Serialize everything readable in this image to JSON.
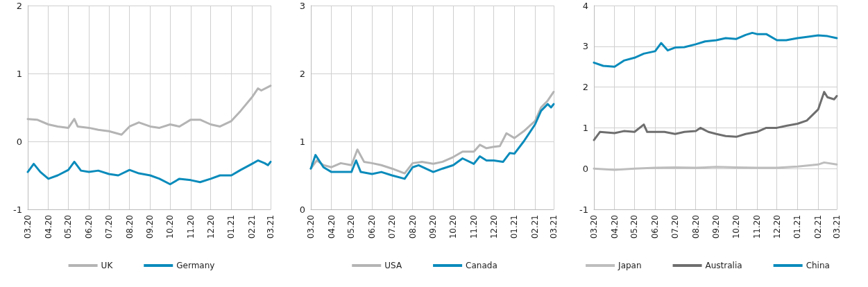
{
  "chart_data": [
    {
      "type": "line",
      "xlim": [
        "2020-03-01",
        "2021-03-01"
      ],
      "ylim": [
        -1,
        2
      ],
      "yticks": [
        -1,
        0,
        1,
        2
      ],
      "grid": true,
      "legend": "bottom",
      "marker": "none",
      "line_style": "solid",
      "xticks": [
        {
          "value": "2020-03-01",
          "label": "03.20"
        },
        {
          "value": "2020-04-01",
          "label": "04.20"
        },
        {
          "value": "2020-05-01",
          "label": "05.20"
        },
        {
          "value": "2020-06-01",
          "label": "06.20"
        },
        {
          "value": "2020-07-01",
          "label": "07.20"
        },
        {
          "value": "2020-08-01",
          "label": "08.20"
        },
        {
          "value": "2020-09-01",
          "label": "09.20"
        },
        {
          "value": "2020-10-01",
          "label": "10.20"
        },
        {
          "value": "2020-11-01",
          "label": "11.20"
        },
        {
          "value": "2020-12-01",
          "label": "12.20"
        },
        {
          "value": "2021-01-01",
          "label": "01.21"
        },
        {
          "value": "2021-02-01",
          "label": "02.21"
        },
        {
          "value": "2021-03-01",
          "label": "03.21"
        }
      ],
      "series": [
        {
          "name": "UK",
          "color": "#b4b4b4",
          "x": [
            "2020-03-01",
            "2020-03-15",
            "2020-04-01",
            "2020-04-15",
            "2020-05-01",
            "2020-05-10",
            "2020-05-15",
            "2020-06-01",
            "2020-06-15",
            "2020-07-01",
            "2020-07-20",
            "2020-08-01",
            "2020-08-15",
            "2020-09-01",
            "2020-09-15",
            "2020-10-01",
            "2020-10-15",
            "2020-11-01",
            "2020-11-15",
            "2020-12-01",
            "2020-12-15",
            "2021-01-01",
            "2021-01-15",
            "2021-02-01",
            "2021-02-10",
            "2021-02-15",
            "2021-02-25",
            "2021-03-01"
          ],
          "values": [
            0.33,
            0.32,
            0.25,
            0.22,
            0.2,
            0.33,
            0.22,
            0.2,
            0.17,
            0.15,
            0.1,
            0.22,
            0.28,
            0.22,
            0.2,
            0.25,
            0.22,
            0.32,
            0.32,
            0.25,
            0.22,
            0.3,
            0.45,
            0.65,
            0.78,
            0.75,
            0.8,
            0.82
          ]
        },
        {
          "name": "Germany",
          "color": "#0a8bbb",
          "x": [
            "2020-03-01",
            "2020-03-10",
            "2020-03-20",
            "2020-04-01",
            "2020-04-15",
            "2020-05-01",
            "2020-05-10",
            "2020-05-20",
            "2020-06-01",
            "2020-06-15",
            "2020-07-01",
            "2020-07-15",
            "2020-08-01",
            "2020-08-15",
            "2020-09-01",
            "2020-09-15",
            "2020-10-01",
            "2020-10-15",
            "2020-11-01",
            "2020-11-15",
            "2020-12-01",
            "2020-12-15",
            "2021-01-01",
            "2021-01-15",
            "2021-02-01",
            "2021-02-10",
            "2021-02-20",
            "2021-02-25",
            "2021-03-01"
          ],
          "values": [
            -0.45,
            -0.33,
            -0.45,
            -0.55,
            -0.5,
            -0.42,
            -0.3,
            -0.43,
            -0.45,
            -0.43,
            -0.48,
            -0.5,
            -0.42,
            -0.47,
            -0.5,
            -0.55,
            -0.63,
            -0.55,
            -0.57,
            -0.6,
            -0.55,
            -0.5,
            -0.5,
            -0.42,
            -0.33,
            -0.28,
            -0.32,
            -0.35,
            -0.3
          ]
        }
      ]
    },
    {
      "type": "line",
      "xlim": [
        "2020-03-01",
        "2021-03-01"
      ],
      "ylim": [
        0,
        3
      ],
      "yticks": [
        0,
        1,
        2,
        3
      ],
      "grid": true,
      "legend": "bottom",
      "marker": "none",
      "line_style": "solid",
      "xticks": [
        {
          "value": "2020-03-01",
          "label": "03.20"
        },
        {
          "value": "2020-04-01",
          "label": "04.20"
        },
        {
          "value": "2020-05-01",
          "label": "05.20"
        },
        {
          "value": "2020-06-01",
          "label": "06.20"
        },
        {
          "value": "2020-07-01",
          "label": "07.20"
        },
        {
          "value": "2020-08-01",
          "label": "08.20"
        },
        {
          "value": "2020-09-01",
          "label": "09.20"
        },
        {
          "value": "2020-10-01",
          "label": "10.20"
        },
        {
          "value": "2020-11-01",
          "label": "11.20"
        },
        {
          "value": "2020-12-01",
          "label": "12.20"
        },
        {
          "value": "2021-01-01",
          "label": "01.21"
        },
        {
          "value": "2021-02-01",
          "label": "02.21"
        },
        {
          "value": "2021-03-01",
          "label": "03.21"
        }
      ],
      "series": [
        {
          "name": "USA",
          "color": "#b4b4b4",
          "x": [
            "2020-03-01",
            "2020-03-10",
            "2020-03-20",
            "2020-04-01",
            "2020-04-15",
            "2020-05-01",
            "2020-05-10",
            "2020-05-20",
            "2020-06-01",
            "2020-06-15",
            "2020-07-01",
            "2020-07-20",
            "2020-08-01",
            "2020-08-15",
            "2020-09-01",
            "2020-09-15",
            "2020-10-01",
            "2020-10-15",
            "2020-11-01",
            "2020-11-10",
            "2020-11-20",
            "2020-12-01",
            "2020-12-10",
            "2020-12-20",
            "2021-01-01",
            "2021-01-15",
            "2021-02-01",
            "2021-02-10",
            "2021-02-20",
            "2021-03-01"
          ],
          "values": [
            0.6,
            0.72,
            0.65,
            0.62,
            0.68,
            0.65,
            0.88,
            0.7,
            0.68,
            0.65,
            0.6,
            0.53,
            0.68,
            0.7,
            0.67,
            0.7,
            0.77,
            0.85,
            0.85,
            0.95,
            0.9,
            0.92,
            0.93,
            1.12,
            1.05,
            1.15,
            1.3,
            1.5,
            1.6,
            1.73
          ]
        },
        {
          "name": "Canada",
          "color": "#0a8bbb",
          "x": [
            "2020-03-01",
            "2020-03-08",
            "2020-03-20",
            "2020-04-01",
            "2020-04-15",
            "2020-05-01",
            "2020-05-08",
            "2020-05-15",
            "2020-06-01",
            "2020-06-15",
            "2020-07-01",
            "2020-07-20",
            "2020-08-01",
            "2020-08-10",
            "2020-09-01",
            "2020-09-15",
            "2020-10-01",
            "2020-10-15",
            "2020-11-01",
            "2020-11-10",
            "2020-11-20",
            "2020-12-01",
            "2020-12-15",
            "2020-12-25",
            "2021-01-01",
            "2021-01-15",
            "2021-02-01",
            "2021-02-10",
            "2021-02-20",
            "2021-02-25",
            "2021-03-01"
          ],
          "values": [
            0.6,
            0.8,
            0.62,
            0.55,
            0.55,
            0.55,
            0.72,
            0.55,
            0.52,
            0.55,
            0.5,
            0.45,
            0.62,
            0.65,
            0.55,
            0.6,
            0.65,
            0.75,
            0.67,
            0.78,
            0.72,
            0.72,
            0.7,
            0.83,
            0.82,
            1.0,
            1.25,
            1.45,
            1.55,
            1.5,
            1.55
          ]
        }
      ]
    },
    {
      "type": "line",
      "xlim": [
        "2020-03-01",
        "2021-03-01"
      ],
      "ylim": [
        -1,
        4
      ],
      "yticks": [
        -1,
        0,
        1,
        2,
        3,
        4
      ],
      "grid": true,
      "legend": "bottom",
      "marker": "none",
      "line_style": "solid",
      "xticks": [
        {
          "value": "2020-03-01",
          "label": "03.20"
        },
        {
          "value": "2020-04-01",
          "label": "04.20"
        },
        {
          "value": "2020-05-01",
          "label": "05.20"
        },
        {
          "value": "2020-06-01",
          "label": "06.20"
        },
        {
          "value": "2020-07-01",
          "label": "07.20"
        },
        {
          "value": "2020-08-01",
          "label": "08.20"
        },
        {
          "value": "2020-09-01",
          "label": "09.20"
        },
        {
          "value": "2020-10-01",
          "label": "10.20"
        },
        {
          "value": "2020-11-01",
          "label": "11.20"
        },
        {
          "value": "2020-12-01",
          "label": "12.20"
        },
        {
          "value": "2021-01-01",
          "label": "01.21"
        },
        {
          "value": "2021-02-01",
          "label": "02.21"
        },
        {
          "value": "2021-03-01",
          "label": "03.21"
        }
      ],
      "series": [
        {
          "name": "Japan",
          "color": "#bdbdbd",
          "x": [
            "2020-03-01",
            "2020-04-01",
            "2020-05-01",
            "2020-06-01",
            "2020-07-01",
            "2020-08-01",
            "2020-09-01",
            "2020-10-01",
            "2020-11-01",
            "2020-12-01",
            "2021-01-01",
            "2021-02-01",
            "2021-02-10",
            "2021-03-01"
          ],
          "values": [
            0.0,
            -0.03,
            0.0,
            0.02,
            0.03,
            0.02,
            0.04,
            0.03,
            0.02,
            0.02,
            0.05,
            0.1,
            0.15,
            0.1
          ]
        },
        {
          "name": "Australia",
          "color": "#6e6e6e",
          "x": [
            "2020-03-01",
            "2020-03-10",
            "2020-04-01",
            "2020-04-15",
            "2020-05-01",
            "2020-05-15",
            "2020-05-20",
            "2020-06-01",
            "2020-06-15",
            "2020-07-01",
            "2020-07-15",
            "2020-08-01",
            "2020-08-08",
            "2020-08-20",
            "2020-09-01",
            "2020-09-15",
            "2020-10-01",
            "2020-10-15",
            "2020-11-01",
            "2020-11-15",
            "2020-12-01",
            "2020-12-15",
            "2021-01-01",
            "2021-01-15",
            "2021-02-01",
            "2021-02-10",
            "2021-02-15",
            "2021-02-25",
            "2021-03-01"
          ],
          "values": [
            0.7,
            0.9,
            0.87,
            0.92,
            0.9,
            1.08,
            0.9,
            0.9,
            0.9,
            0.85,
            0.9,
            0.92,
            1.0,
            0.9,
            0.85,
            0.8,
            0.78,
            0.85,
            0.9,
            1.0,
            1.0,
            1.05,
            1.1,
            1.18,
            1.45,
            1.88,
            1.75,
            1.7,
            1.78
          ]
        },
        {
          "name": "China",
          "color": "#0a8bbb",
          "x": [
            "2020-03-01",
            "2020-03-15",
            "2020-04-01",
            "2020-04-15",
            "2020-05-01",
            "2020-05-15",
            "2020-06-01",
            "2020-06-10",
            "2020-06-20",
            "2020-07-01",
            "2020-07-15",
            "2020-08-01",
            "2020-08-15",
            "2020-09-01",
            "2020-09-15",
            "2020-10-01",
            "2020-10-15",
            "2020-10-25",
            "2020-11-01",
            "2020-11-15",
            "2020-12-01",
            "2020-12-15",
            "2021-01-01",
            "2021-01-15",
            "2021-02-01",
            "2021-02-15",
            "2021-03-01"
          ],
          "values": [
            2.6,
            2.52,
            2.5,
            2.65,
            2.72,
            2.82,
            2.88,
            3.08,
            2.9,
            2.97,
            2.98,
            3.05,
            3.12,
            3.15,
            3.2,
            3.18,
            3.28,
            3.33,
            3.3,
            3.3,
            3.15,
            3.15,
            3.2,
            3.23,
            3.27,
            3.25,
            3.2
          ]
        }
      ]
    }
  ]
}
